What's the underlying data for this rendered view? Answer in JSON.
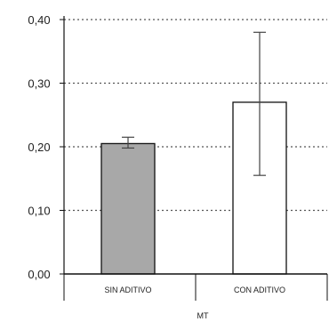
{
  "chart_data": {
    "type": "bar",
    "categories": [
      "SIN ADITIVO",
      "CON ADITIVO"
    ],
    "values": [
      0.205,
      0.27
    ],
    "error_low": [
      0.198,
      0.155
    ],
    "error_high": [
      0.215,
      0.38
    ],
    "yticks": [
      "0,00",
      "0,10",
      "0,20",
      "0,30",
      "0,40"
    ],
    "ylim": [
      0,
      0.4
    ],
    "xlabel": "MT",
    "grid": "dotted horizontal",
    "colors": {
      "bar1": "#a8a8a8",
      "bar2": "#ffffff",
      "line": "#111111"
    }
  }
}
